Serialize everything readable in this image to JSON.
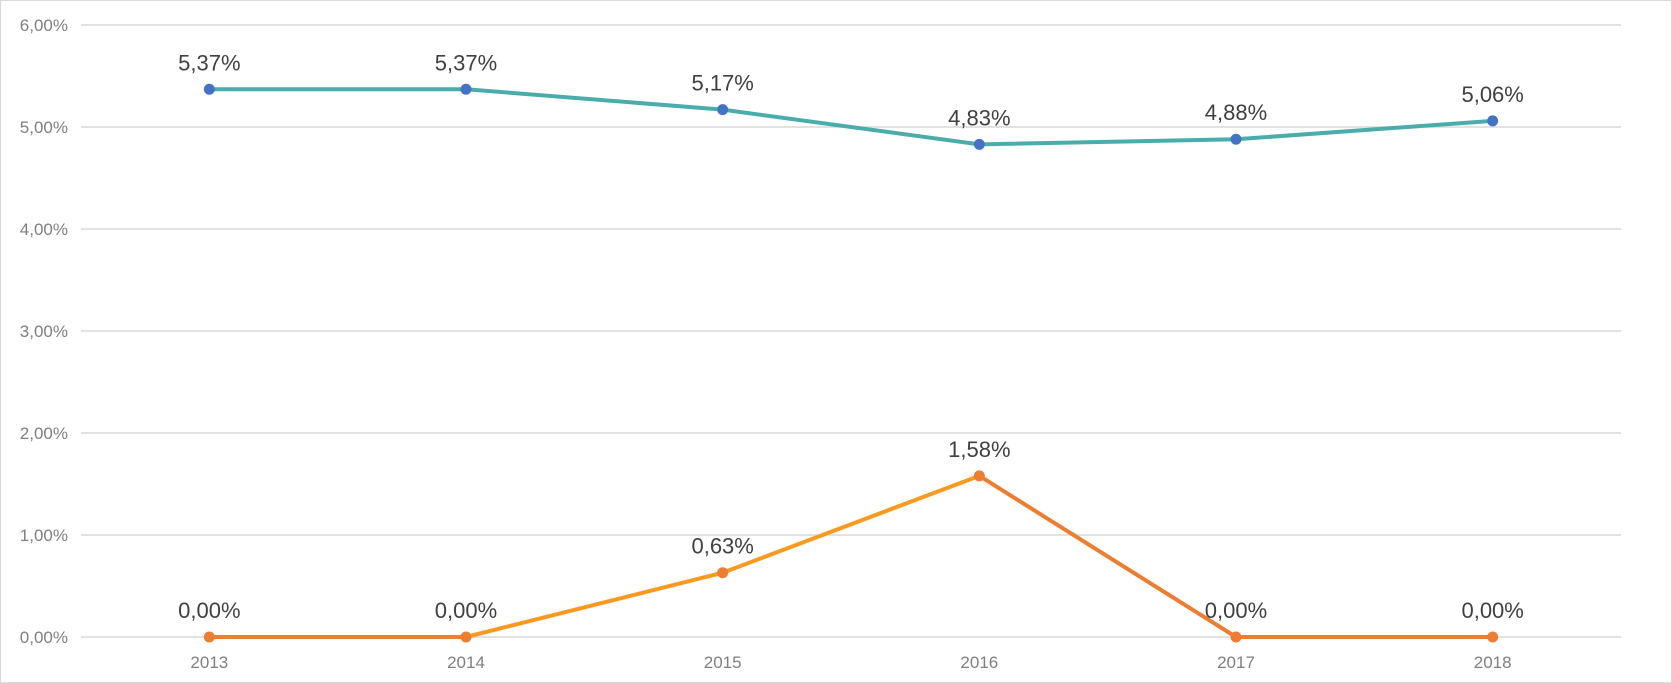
{
  "chart_data": {
    "type": "line",
    "categories": [
      "2013",
      "2014",
      "2015",
      "2016",
      "2017",
      "2018"
    ],
    "ylim": [
      0,
      6
    ],
    "y_ticks": [
      "0,00%",
      "1,00%",
      "2,00%",
      "3,00%",
      "4,00%",
      "5,00%",
      "6,00%"
    ],
    "grid": true,
    "legend": "none",
    "series": [
      {
        "values": [
          5.37,
          5.37,
          5.17,
          4.83,
          4.88,
          5.06
        ],
        "labels": [
          "5,37%",
          "5,37%",
          "5,17%",
          "4,83%",
          "4,88%",
          "5,06%"
        ],
        "line_color": "#4bacac",
        "marker_color": "#4472c4"
      },
      {
        "values": [
          0.0,
          0.0,
          0.63,
          1.58,
          0.0,
          0.0
        ],
        "labels": [
          "0,00%",
          "0,00%",
          "0,63%",
          "1,58%",
          "0,00%",
          "0,00%"
        ],
        "line_color": "#ed7d31",
        "line_color_rise": "#f79a1f",
        "marker_color": "#ed7d31"
      }
    ]
  }
}
